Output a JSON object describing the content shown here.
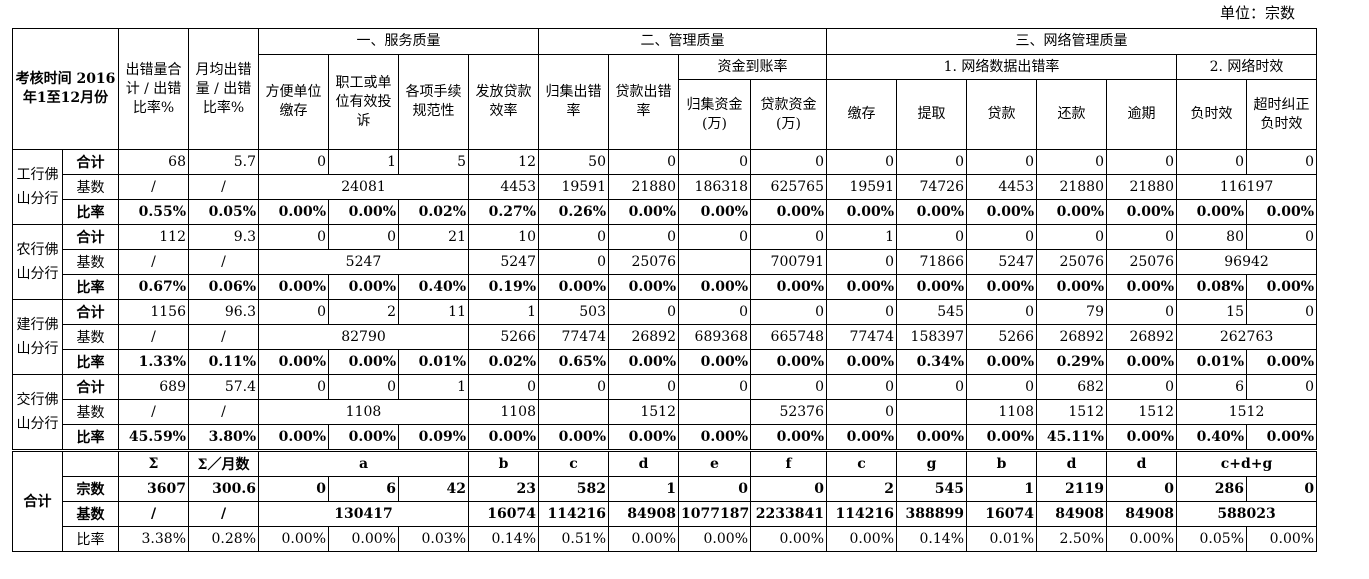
{
  "unit": "单位：宗数",
  "header": {
    "time": "考核时间 2016年1至12月份",
    "total": "出错量合计 / 出错比率%",
    "monthly": "月均出错量 / 出错比率%",
    "group1": "一、服务质量",
    "group2": "二、管理质量",
    "group3": "三、网络管理质量",
    "sub_fund": "资金到账率",
    "sub_net1": "1. 网络数据出错率",
    "sub_net2": "2. 网络时效",
    "cols": [
      "方便单位缴存",
      "职工或单位有效投诉",
      "各项手续规范性",
      "发放贷款效率",
      "归集出错率",
      "贷款出错率",
      "归集资金(万)",
      "贷款资金(万)",
      "缴存",
      "提取",
      "贷款",
      "还款",
      "逾期",
      "负时效",
      "超时纠正负时效"
    ]
  },
  "row_labels": {
    "total": "合计",
    "base": "基数",
    "rate": "比率"
  },
  "banks": [
    {
      "name": "工行佛山分行",
      "total": [
        "68",
        "5.7",
        "0",
        "1",
        "5",
        "12",
        "50",
        "0",
        "0",
        "0",
        "0",
        "0",
        "0",
        "0",
        "0",
        "0",
        "0"
      ],
      "base": {
        "c1": "/",
        "c2": "/",
        "svc": "24081",
        "loan_eff": "4453",
        "c5": "19591",
        "c6": "21880",
        "c7": "186318",
        "c8": "625765",
        "c9": "19591",
        "c10": "74726",
        "c11": "4453",
        "c12": "21880",
        "c13": "21880",
        "net2": "116197"
      },
      "rate": [
        "0.55%",
        "0.05%",
        "0.00%",
        "0.00%",
        "0.02%",
        "0.27%",
        "0.26%",
        "0.00%",
        "0.00%",
        "0.00%",
        "0.00%",
        "0.00%",
        "0.00%",
        "0.00%",
        "0.00%",
        "0.00%",
        "0.00%"
      ]
    },
    {
      "name": "农行佛山分行",
      "total": [
        "112",
        "9.3",
        "0",
        "0",
        "21",
        "10",
        "0",
        "0",
        "0",
        "0",
        "1",
        "0",
        "0",
        "0",
        "0",
        "80",
        "0"
      ],
      "base": {
        "c1": "/",
        "c2": "/",
        "svc": "5247",
        "loan_eff": "5247",
        "c5": "0",
        "c6": "25076",
        "c7": "",
        "c8": "700791",
        "c9": "0",
        "c10": "71866",
        "c11": "5247",
        "c12": "25076",
        "c13": "25076",
        "net2": "96942"
      },
      "rate": [
        "0.67%",
        "0.06%",
        "0.00%",
        "0.00%",
        "0.40%",
        "0.19%",
        "0.00%",
        "0.00%",
        "0.00%",
        "0.00%",
        "0.00%",
        "0.00%",
        "0.00%",
        "0.00%",
        "0.00%",
        "0.08%",
        "0.00%"
      ]
    },
    {
      "name": "建行佛山分行",
      "total": [
        "1156",
        "96.3",
        "0",
        "2",
        "11",
        "1",
        "503",
        "0",
        "0",
        "0",
        "0",
        "545",
        "0",
        "79",
        "0",
        "15",
        "0"
      ],
      "base": {
        "c1": "/",
        "c2": "/",
        "svc": "82790",
        "loan_eff": "5266",
        "c5": "77474",
        "c6": "26892",
        "c7": "689368",
        "c8": "665748",
        "c9": "77474",
        "c10": "158397",
        "c11": "5266",
        "c12": "26892",
        "c13": "26892",
        "net2": "262763"
      },
      "rate": [
        "1.33%",
        "0.11%",
        "0.00%",
        "0.00%",
        "0.01%",
        "0.02%",
        "0.65%",
        "0.00%",
        "0.00%",
        "0.00%",
        "0.00%",
        "0.34%",
        "0.00%",
        "0.29%",
        "0.00%",
        "0.01%",
        "0.00%"
      ]
    },
    {
      "name": "交行佛山分行",
      "total": [
        "689",
        "57.4",
        "0",
        "0",
        "1",
        "0",
        "0",
        "0",
        "0",
        "0",
        "0",
        "0",
        "0",
        "682",
        "0",
        "6",
        "0"
      ],
      "base": {
        "c1": "/",
        "c2": "/",
        "svc": "1108",
        "loan_eff": "1108",
        "c5": "",
        "c6": "1512",
        "c7": "",
        "c8": "52376",
        "c9": "0",
        "c10": "",
        "c11": "1108",
        "c12": "1512",
        "c13": "1512",
        "net2": "1512"
      },
      "rate": [
        "45.59%",
        "3.80%",
        "0.00%",
        "0.00%",
        "0.09%",
        "0.00%",
        "0.00%",
        "0.00%",
        "0.00%",
        "0.00%",
        "0.00%",
        "0.00%",
        "0.00%",
        "45.11%",
        "0.00%",
        "0.40%",
        "0.00%"
      ]
    }
  ],
  "summary": {
    "label": "合计",
    "formula": {
      "c1": "Σ",
      "c2": "Σ／月数",
      "svc": "a",
      "c6a": "b",
      "c5": "c",
      "c6": "d",
      "c7": "e",
      "c8": "f",
      "c9": "c",
      "c10": "g",
      "c11": "b",
      "c12": "d",
      "c13": "d",
      "net2": "c+d+g"
    },
    "count_label": "宗数",
    "count": [
      "3607",
      "300.6",
      "0",
      "6",
      "42",
      "23",
      "582",
      "1",
      "0",
      "0",
      "2",
      "545",
      "1",
      "2119",
      "0",
      "286",
      "0"
    ],
    "base_label": "基数",
    "base": {
      "c1": "/",
      "c2": "/",
      "svc": "130417",
      "loan_eff": "16074",
      "c5": "114216",
      "c6": "84908",
      "c7": "1077187",
      "c8": "2233841",
      "c9": "114216",
      "c10": "388899",
      "c11": "16074",
      "c12": "84908",
      "c13": "84908",
      "net2": "588023"
    },
    "rate_label": "比率",
    "rate": [
      "3.38%",
      "0.28%",
      "0.00%",
      "0.00%",
      "0.03%",
      "0.14%",
      "0.51%",
      "0.00%",
      "0.00%",
      "0.00%",
      "0.00%",
      "0.14%",
      "0.01%",
      "2.50%",
      "0.00%",
      "0.05%",
      "0.00%"
    ]
  }
}
